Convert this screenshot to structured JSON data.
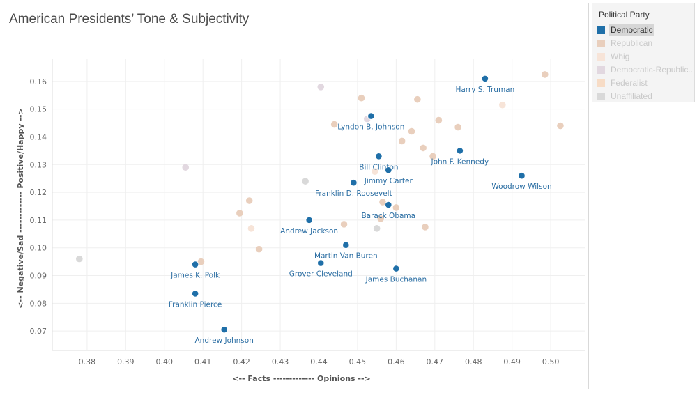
{
  "title": "American Presidents’ Tone & Subjectivity",
  "legend": {
    "title": "Political Party",
    "items": [
      {
        "label": "Democratic",
        "color": "#1f6fa8",
        "selected": true
      },
      {
        "label": "Republican",
        "color": "#e9cfbd",
        "selected": false
      },
      {
        "label": "Whig",
        "color": "#f7e4d8",
        "selected": false
      },
      {
        "label": "Democratic-Republic..",
        "color": "#e2d8e0",
        "selected": false
      },
      {
        "label": "Federalist",
        "color": "#f7dcc6",
        "selected": false
      },
      {
        "label": "Unaffiliated",
        "color": "#d9d9d9",
        "selected": false
      }
    ]
  },
  "chart_data": {
    "type": "scatter",
    "title": "American Presidents’ Tone & Subjectivity",
    "xlabel": "<-- Facts ------------- Opinions -->",
    "ylabel": "<-- Negative/Sad ------------- Positive/Happy -->",
    "xlim": [
      0.371,
      0.509
    ],
    "ylim": [
      0.063,
      0.168
    ],
    "xticks": [
      0.38,
      0.39,
      0.4,
      0.41,
      0.42,
      0.43,
      0.44,
      0.45,
      0.46,
      0.47,
      0.48,
      0.49,
      0.5
    ],
    "xtick_labels": [
      "0.38",
      "0.39",
      "0.40",
      "0.41",
      "0.42",
      "0.43",
      "0.44",
      "0.45",
      "0.46",
      "0.47",
      "0.48",
      "0.49",
      "0.50"
    ],
    "yticks": [
      0.07,
      0.08,
      0.09,
      0.1,
      0.11,
      0.12,
      0.13,
      0.14,
      0.15,
      0.16
    ],
    "ytick_labels": [
      "0.07",
      "0.08",
      "0.09",
      "0.10",
      "0.11",
      "0.12",
      "0.13",
      "0.14",
      "0.15",
      "0.16"
    ],
    "grid": true,
    "legend_position": "right",
    "series": [
      {
        "name": "Democratic",
        "color": "#1f6fa8",
        "points": [
          {
            "x": 0.483,
            "y": 0.161,
            "label": "Harry S. Truman"
          },
          {
            "x": 0.4535,
            "y": 0.1475,
            "label": "Lyndon B. Johnson"
          },
          {
            "x": 0.4555,
            "y": 0.133,
            "label": "Bill Clinton"
          },
          {
            "x": 0.4765,
            "y": 0.135,
            "label": "John F. Kennedy"
          },
          {
            "x": 0.458,
            "y": 0.128,
            "label": "Jimmy Carter"
          },
          {
            "x": 0.4925,
            "y": 0.126,
            "label": "Woodrow Wilson"
          },
          {
            "x": 0.449,
            "y": 0.1235,
            "label": "Franklin D. Roosevelt"
          },
          {
            "x": 0.458,
            "y": 0.1155,
            "label": "Barack Obama"
          },
          {
            "x": 0.4375,
            "y": 0.11,
            "label": "Andrew Jackson"
          },
          {
            "x": 0.447,
            "y": 0.101,
            "label": "Martin Van Buren"
          },
          {
            "x": 0.4405,
            "y": 0.0945,
            "label": "Grover Cleveland"
          },
          {
            "x": 0.46,
            "y": 0.0925,
            "label": "James Buchanan"
          },
          {
            "x": 0.408,
            "y": 0.094,
            "label": "James K. Polk"
          },
          {
            "x": 0.408,
            "y": 0.0835,
            "label": "Franklin Pierce"
          },
          {
            "x": 0.4155,
            "y": 0.0705,
            "label": "Andrew Johnson"
          }
        ]
      },
      {
        "name": "Republican",
        "color": "#e9cfbd",
        "points": [
          {
            "x": 0.4985,
            "y": 0.1625
          },
          {
            "x": 0.5025,
            "y": 0.144
          },
          {
            "x": 0.451,
            "y": 0.154
          },
          {
            "x": 0.4655,
            "y": 0.1535
          },
          {
            "x": 0.444,
            "y": 0.1445
          },
          {
            "x": 0.471,
            "y": 0.146
          },
          {
            "x": 0.476,
            "y": 0.1435
          },
          {
            "x": 0.464,
            "y": 0.142
          },
          {
            "x": 0.4615,
            "y": 0.1385
          },
          {
            "x": 0.467,
            "y": 0.136
          },
          {
            "x": 0.4695,
            "y": 0.133
          },
          {
            "x": 0.4565,
            "y": 0.1165
          },
          {
            "x": 0.46,
            "y": 0.1145
          },
          {
            "x": 0.456,
            "y": 0.1105
          },
          {
            "x": 0.422,
            "y": 0.117
          },
          {
            "x": 0.4195,
            "y": 0.1125
          },
          {
            "x": 0.4465,
            "y": 0.1085
          },
          {
            "x": 0.4675,
            "y": 0.1075
          },
          {
            "x": 0.4245,
            "y": 0.0995
          },
          {
            "x": 0.4095,
            "y": 0.095
          }
        ]
      },
      {
        "name": "Whig",
        "color": "#f7e4d8",
        "points": [
          {
            "x": 0.4875,
            "y": 0.1515
          },
          {
            "x": 0.4545,
            "y": 0.1275
          },
          {
            "x": 0.4225,
            "y": 0.107
          }
        ]
      },
      {
        "name": "Democratic-Republic..",
        "color": "#e2d8e0",
        "points": [
          {
            "x": 0.4405,
            "y": 0.158
          },
          {
            "x": 0.4525,
            "y": 0.1465
          },
          {
            "x": 0.4055,
            "y": 0.129
          }
        ]
      },
      {
        "name": "Federalist",
        "color": "#f7dcc6",
        "points": []
      },
      {
        "name": "Unaffiliated",
        "color": "#d9d9d9",
        "points": [
          {
            "x": 0.4365,
            "y": 0.124
          },
          {
            "x": 0.455,
            "y": 0.107
          },
          {
            "x": 0.378,
            "y": 0.096
          }
        ]
      }
    ]
  }
}
